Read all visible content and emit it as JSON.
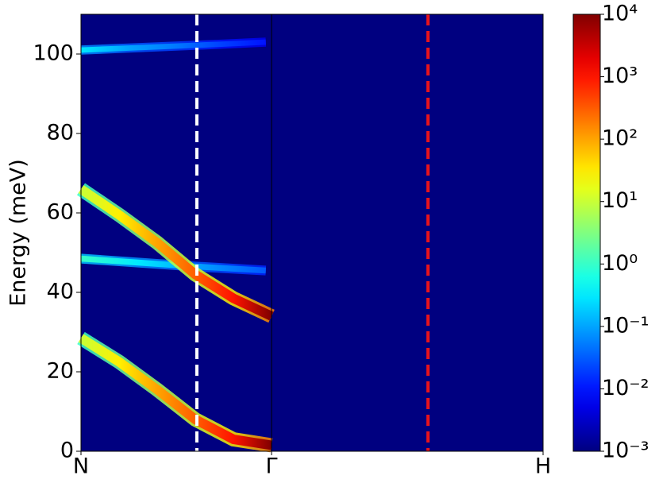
{
  "chart_data": {
    "type": "heatmap-bands",
    "y_label": "Energy (meV)",
    "xlim": [
      0,
      2.425
    ],
    "xticks": [
      {
        "value": 0,
        "label": "N"
      },
      {
        "value": 1,
        "label": "Γ"
      },
      {
        "value": 2.425,
        "label": "H"
      }
    ],
    "ylim": [
      0,
      110
    ],
    "yticks": [
      0,
      20,
      40,
      60,
      80,
      100
    ],
    "colorbar": {
      "colormap": "jet",
      "log": true,
      "lim": [
        0.001,
        10000
      ],
      "ticks": [
        {
          "value": 0.001,
          "label": "10⁻³"
        },
        {
          "value": 0.01,
          "label": "10⁻²"
        },
        {
          "value": 0.1,
          "label": "10⁻¹"
        },
        {
          "value": 1,
          "label": "10⁰"
        },
        {
          "value": 10,
          "label": "10¹"
        },
        {
          "value": 100,
          "label": "10²"
        },
        {
          "value": 1000,
          "label": "10³"
        },
        {
          "value": 10000,
          "label": "10⁴"
        }
      ]
    },
    "bands": [
      {
        "x": [
          0,
          0.25,
          0.5,
          0.75,
          0.97
        ],
        "values": [
          101,
          101.5,
          102,
          102.5,
          103
        ],
        "intensity": [
          0.3,
          0.1,
          0.05,
          0.02,
          0.01
        ]
      },
      {
        "x": [
          0,
          0.3,
          0.6,
          0.97
        ],
        "values": [
          48.5,
          47.5,
          46.5,
          45.5
        ],
        "intensity": [
          1,
          0.3,
          0.1,
          0.03
        ]
      },
      {
        "x": [
          0,
          0.2,
          0.4,
          0.6,
          0.8,
          1
        ],
        "values": [
          66,
          59.5,
          52.5,
          44.5,
          38.5,
          34
        ],
        "intensity": [
          10,
          30,
          100,
          300,
          1000,
          10000
        ]
      },
      {
        "x": [
          0,
          0.2,
          0.4,
          0.6,
          0.8,
          1
        ],
        "values": [
          28.5,
          22.5,
          15.5,
          8,
          3,
          1.5
        ],
        "intensity": [
          10,
          30,
          100,
          300,
          1000,
          10000
        ]
      }
    ],
    "vlines": [
      {
        "x": 0.608,
        "color": "#ffffff"
      },
      {
        "x": 1.821,
        "color": "#e8141c"
      }
    ]
  }
}
